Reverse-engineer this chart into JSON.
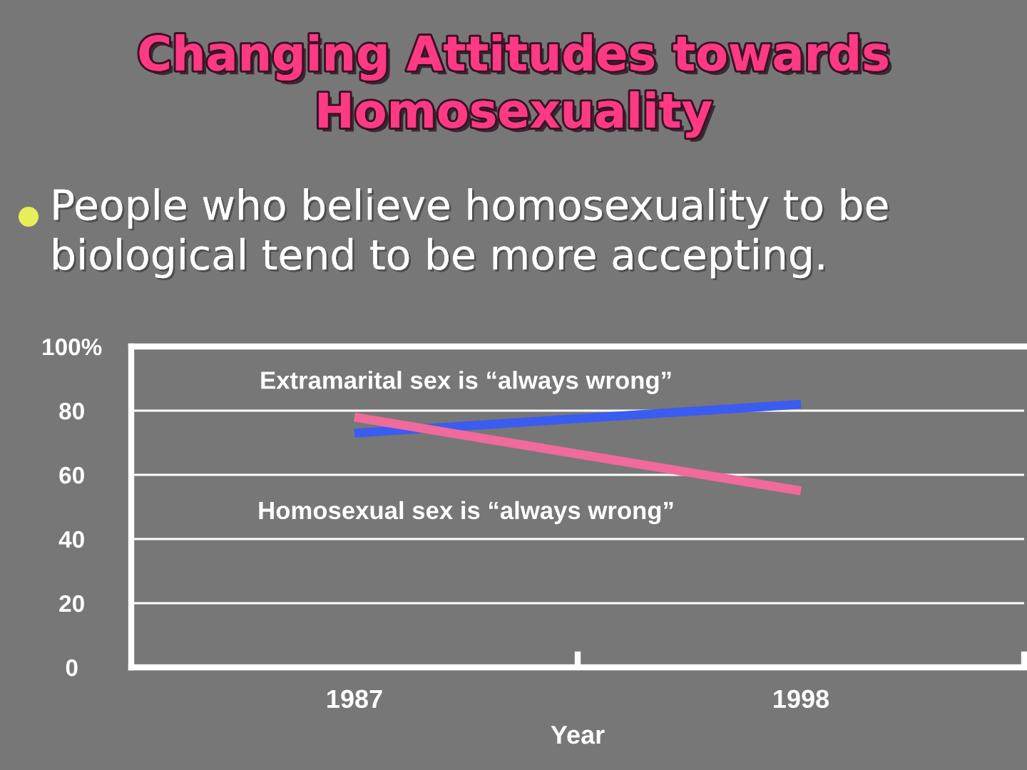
{
  "chart_data": {
    "type": "line",
    "title": "Changing Attitudes towards Homosexuality",
    "subtitle": "People who believe homosexuality to be biological tend to be more accepting.",
    "xlabel": "Year",
    "categories": [
      "1987",
      "1998"
    ],
    "series": [
      {
        "name": "Extramarital sex is “always wrong”",
        "color": "#3a5cf0",
        "values": [
          73,
          82
        ]
      },
      {
        "name": "Homosexual sex is “always wrong”",
        "color": "#f06a9c",
        "values": [
          78,
          55
        ]
      }
    ],
    "ylim": [
      0,
      100
    ],
    "yticks": [
      0,
      20,
      40,
      60,
      80,
      {
        "value": 100,
        "label": "100%"
      }
    ],
    "grid": "y"
  }
}
